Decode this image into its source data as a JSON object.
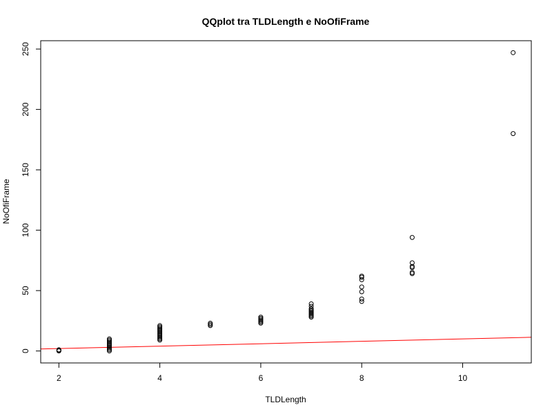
{
  "chart_data": {
    "type": "scatter",
    "title": "QQplot tra TLDLength e NoOfiFrame",
    "xlabel": "TLDLength",
    "ylabel": "NoOfiFrame",
    "xlim": [
      1.64,
      11.36
    ],
    "ylim": [
      -9.9,
      256.9
    ],
    "x_ticks": [
      2,
      4,
      6,
      8,
      10
    ],
    "y_ticks": [
      0,
      50,
      100,
      150,
      200,
      250
    ],
    "grid": false,
    "legend": "none",
    "point_color": "#000000",
    "line_color": "#ff0000",
    "series": [
      {
        "values": [
          [
            2,
            0
          ],
          [
            2,
            0.5
          ],
          [
            2,
            1
          ],
          [
            3,
            0
          ],
          [
            3,
            1
          ],
          [
            3,
            2
          ],
          [
            3,
            3
          ],
          [
            3,
            4
          ],
          [
            3,
            5
          ],
          [
            3,
            6
          ],
          [
            3,
            7
          ],
          [
            3,
            8
          ],
          [
            3,
            9
          ],
          [
            3,
            10
          ],
          [
            4,
            9
          ],
          [
            4,
            10
          ],
          [
            4,
            11
          ],
          [
            4,
            12
          ],
          [
            4,
            13
          ],
          [
            4,
            14
          ],
          [
            4,
            15
          ],
          [
            4,
            16
          ],
          [
            4,
            17
          ],
          [
            4,
            18
          ],
          [
            4,
            19
          ],
          [
            4,
            20
          ],
          [
            4,
            21
          ],
          [
            5,
            21
          ],
          [
            5,
            22
          ],
          [
            5,
            23
          ],
          [
            6,
            23
          ],
          [
            6,
            24
          ],
          [
            6,
            25
          ],
          [
            6,
            26
          ],
          [
            6,
            27
          ],
          [
            6,
            28
          ],
          [
            7,
            28
          ],
          [
            7,
            29
          ],
          [
            7,
            30
          ],
          [
            7,
            31
          ],
          [
            7,
            32
          ],
          [
            7,
            33
          ],
          [
            7,
            34
          ],
          [
            7,
            35
          ],
          [
            7,
            37
          ],
          [
            7,
            39
          ],
          [
            8,
            41
          ],
          [
            8,
            43
          ],
          [
            8,
            49
          ],
          [
            8,
            53
          ],
          [
            8,
            59
          ],
          [
            8,
            61
          ],
          [
            8,
            62
          ],
          [
            9,
            64
          ],
          [
            9,
            65
          ],
          [
            9,
            69
          ],
          [
            9,
            70
          ],
          [
            9,
            73
          ],
          [
            9,
            94
          ],
          [
            11,
            180
          ],
          [
            11,
            247
          ]
        ]
      }
    ],
    "reference_line": {
      "intercept": 0,
      "slope": 1
    }
  }
}
